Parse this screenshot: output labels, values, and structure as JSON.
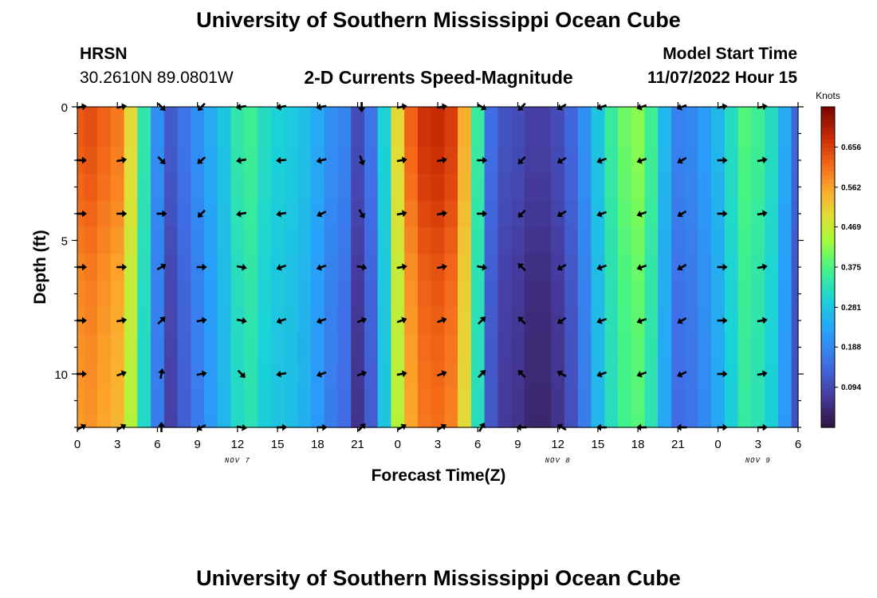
{
  "header": {
    "title": "University of Southern Mississippi Ocean Cube",
    "station": "HRSN",
    "coords": "30.2610N  89.0801W",
    "subtitle": "2-D Currents Speed-Magnitude",
    "model_label": "Model Start Time",
    "model_time": "11/07/2022 Hour 15"
  },
  "footer": {
    "title": "University of Southern Mississippi Ocean Cube"
  },
  "chart_data": {
    "type": "heatmap",
    "title": "2-D Currents Speed-Magnitude",
    "xlabel": "Forecast Time(Z)",
    "ylabel": "Depth (ft)",
    "x_hours": [
      0,
      1,
      2,
      3,
      4,
      5,
      6,
      7,
      8,
      9,
      10,
      11,
      12,
      13,
      14,
      15,
      16,
      17,
      18,
      19,
      20,
      21,
      22,
      23,
      24,
      25,
      26,
      27,
      28,
      29,
      30,
      31,
      32,
      33,
      34,
      35,
      36,
      37,
      38,
      39,
      40,
      41,
      42,
      43,
      44,
      45,
      46,
      47,
      48,
      49,
      50,
      51,
      52,
      53,
      54
    ],
    "x_ticks": [
      {
        "h": 0,
        "label": "0"
      },
      {
        "h": 3,
        "label": "3"
      },
      {
        "h": 6,
        "label": "6"
      },
      {
        "h": 9,
        "label": "9"
      },
      {
        "h": 12,
        "label": "12"
      },
      {
        "h": 15,
        "label": "15"
      },
      {
        "h": 18,
        "label": "18"
      },
      {
        "h": 21,
        "label": "21"
      },
      {
        "h": 24,
        "label": "0"
      },
      {
        "h": 27,
        "label": "3"
      },
      {
        "h": 30,
        "label": "6"
      },
      {
        "h": 33,
        "label": "9"
      },
      {
        "h": 36,
        "label": "12"
      },
      {
        "h": 39,
        "label": "15"
      },
      {
        "h": 42,
        "label": "18"
      },
      {
        "h": 45,
        "label": "21"
      },
      {
        "h": 48,
        "label": "0"
      },
      {
        "h": 51,
        "label": "3"
      },
      {
        "h": 54,
        "label": "6"
      }
    ],
    "date_labels": [
      {
        "h": 12,
        "label": "NOV 7"
      },
      {
        "h": 36,
        "label": "NOV 8"
      },
      {
        "h": 51,
        "label": "NOV 9"
      }
    ],
    "xlim": [
      0,
      54
    ],
    "depths_ft": [
      0,
      1,
      2,
      3,
      4,
      5,
      6,
      7,
      8,
      9,
      10,
      11,
      12
    ],
    "ylim": [
      0,
      12
    ],
    "y_ticks": [
      {
        "d": 0,
        "label": "0"
      },
      {
        "d": 5,
        "label": "5"
      },
      {
        "d": 10,
        "label": "10"
      }
    ],
    "speed_knots": [
      [
        0.63,
        0.64,
        0.62,
        0.6,
        0.5,
        0.34,
        0.2,
        0.12,
        0.16,
        0.2,
        0.24,
        0.28,
        0.34,
        0.36,
        0.32,
        0.3,
        0.29,
        0.27,
        0.24,
        0.2,
        0.18,
        0.1,
        0.16,
        0.3,
        0.5,
        0.62,
        0.67,
        0.68,
        0.66,
        0.55,
        0.35,
        0.15,
        0.11,
        0.1,
        0.08,
        0.08,
        0.1,
        0.14,
        0.2,
        0.28,
        0.35,
        0.4,
        0.42,
        0.36,
        0.26,
        0.18,
        0.19,
        0.22,
        0.26,
        0.32,
        0.38,
        0.36,
        0.32,
        0.24,
        0.14
      ],
      [
        0.63,
        0.64,
        0.62,
        0.6,
        0.5,
        0.34,
        0.2,
        0.12,
        0.16,
        0.2,
        0.24,
        0.28,
        0.34,
        0.36,
        0.32,
        0.3,
        0.29,
        0.27,
        0.24,
        0.2,
        0.18,
        0.1,
        0.16,
        0.3,
        0.5,
        0.62,
        0.67,
        0.68,
        0.66,
        0.55,
        0.35,
        0.15,
        0.11,
        0.1,
        0.08,
        0.08,
        0.1,
        0.14,
        0.2,
        0.28,
        0.35,
        0.4,
        0.42,
        0.36,
        0.26,
        0.18,
        0.19,
        0.22,
        0.26,
        0.32,
        0.38,
        0.36,
        0.32,
        0.24,
        0.14
      ],
      [
        0.63,
        0.64,
        0.62,
        0.6,
        0.5,
        0.34,
        0.2,
        0.12,
        0.16,
        0.2,
        0.24,
        0.28,
        0.34,
        0.36,
        0.32,
        0.3,
        0.29,
        0.27,
        0.24,
        0.2,
        0.18,
        0.1,
        0.16,
        0.3,
        0.5,
        0.62,
        0.67,
        0.68,
        0.66,
        0.55,
        0.35,
        0.15,
        0.11,
        0.1,
        0.08,
        0.08,
        0.1,
        0.14,
        0.2,
        0.28,
        0.35,
        0.4,
        0.42,
        0.36,
        0.26,
        0.18,
        0.19,
        0.22,
        0.26,
        0.32,
        0.38,
        0.36,
        0.32,
        0.24,
        0.14
      ],
      [
        0.63,
        0.64,
        0.62,
        0.6,
        0.5,
        0.34,
        0.2,
        0.12,
        0.16,
        0.2,
        0.24,
        0.28,
        0.34,
        0.36,
        0.32,
        0.3,
        0.29,
        0.27,
        0.24,
        0.2,
        0.18,
        0.1,
        0.16,
        0.3,
        0.5,
        0.62,
        0.67,
        0.68,
        0.66,
        0.55,
        0.35,
        0.15,
        0.11,
        0.1,
        0.08,
        0.08,
        0.1,
        0.14,
        0.2,
        0.28,
        0.35,
        0.4,
        0.42,
        0.36,
        0.26,
        0.18,
        0.19,
        0.22,
        0.26,
        0.32,
        0.38,
        0.36,
        0.32,
        0.24,
        0.14
      ],
      [
        0.63,
        0.64,
        0.62,
        0.6,
        0.5,
        0.34,
        0.2,
        0.12,
        0.16,
        0.2,
        0.24,
        0.28,
        0.34,
        0.36,
        0.32,
        0.3,
        0.29,
        0.27,
        0.24,
        0.2,
        0.18,
        0.1,
        0.16,
        0.3,
        0.5,
        0.62,
        0.67,
        0.68,
        0.66,
        0.55,
        0.35,
        0.15,
        0.11,
        0.1,
        0.08,
        0.08,
        0.1,
        0.14,
        0.2,
        0.28,
        0.35,
        0.4,
        0.42,
        0.36,
        0.26,
        0.18,
        0.19,
        0.22,
        0.26,
        0.32,
        0.38,
        0.36,
        0.32,
        0.24,
        0.14
      ],
      [
        0.63,
        0.64,
        0.62,
        0.6,
        0.5,
        0.34,
        0.2,
        0.12,
        0.16,
        0.2,
        0.24,
        0.28,
        0.34,
        0.36,
        0.32,
        0.3,
        0.29,
        0.27,
        0.24,
        0.2,
        0.18,
        0.1,
        0.16,
        0.3,
        0.5,
        0.62,
        0.67,
        0.68,
        0.66,
        0.55,
        0.35,
        0.15,
        0.11,
        0.1,
        0.08,
        0.08,
        0.1,
        0.14,
        0.2,
        0.28,
        0.35,
        0.4,
        0.42,
        0.36,
        0.26,
        0.18,
        0.19,
        0.22,
        0.26,
        0.32,
        0.38,
        0.36,
        0.32,
        0.24,
        0.14
      ],
      [
        0.63,
        0.64,
        0.62,
        0.6,
        0.5,
        0.34,
        0.2,
        0.12,
        0.16,
        0.2,
        0.24,
        0.28,
        0.34,
        0.36,
        0.32,
        0.3,
        0.29,
        0.27,
        0.24,
        0.2,
        0.18,
        0.1,
        0.16,
        0.3,
        0.5,
        0.62,
        0.67,
        0.68,
        0.66,
        0.55,
        0.35,
        0.15,
        0.11,
        0.1,
        0.08,
        0.08,
        0.1,
        0.14,
        0.2,
        0.28,
        0.35,
        0.4,
        0.42,
        0.36,
        0.26,
        0.18,
        0.19,
        0.22,
        0.26,
        0.32,
        0.38,
        0.36,
        0.32,
        0.24,
        0.14
      ],
      [
        0.63,
        0.64,
        0.62,
        0.6,
        0.5,
        0.34,
        0.2,
        0.12,
        0.16,
        0.2,
        0.24,
        0.28,
        0.34,
        0.36,
        0.32,
        0.3,
        0.29,
        0.27,
        0.24,
        0.2,
        0.18,
        0.1,
        0.16,
        0.3,
        0.5,
        0.62,
        0.67,
        0.68,
        0.66,
        0.55,
        0.35,
        0.15,
        0.11,
        0.1,
        0.08,
        0.08,
        0.1,
        0.14,
        0.2,
        0.28,
        0.35,
        0.4,
        0.42,
        0.36,
        0.26,
        0.18,
        0.19,
        0.22,
        0.26,
        0.32,
        0.38,
        0.36,
        0.32,
        0.24,
        0.14
      ],
      [
        0.63,
        0.64,
        0.62,
        0.6,
        0.5,
        0.34,
        0.2,
        0.12,
        0.16,
        0.2,
        0.24,
        0.28,
        0.34,
        0.36,
        0.32,
        0.3,
        0.29,
        0.27,
        0.24,
        0.2,
        0.18,
        0.1,
        0.16,
        0.3,
        0.5,
        0.62,
        0.67,
        0.68,
        0.66,
        0.55,
        0.35,
        0.15,
        0.11,
        0.1,
        0.08,
        0.08,
        0.1,
        0.14,
        0.2,
        0.28,
        0.35,
        0.4,
        0.42,
        0.36,
        0.26,
        0.18,
        0.19,
        0.22,
        0.26,
        0.32,
        0.38,
        0.36,
        0.32,
        0.24,
        0.14
      ],
      [
        0.63,
        0.64,
        0.62,
        0.6,
        0.5,
        0.34,
        0.2,
        0.12,
        0.16,
        0.2,
        0.24,
        0.28,
        0.34,
        0.36,
        0.32,
        0.3,
        0.29,
        0.27,
        0.24,
        0.2,
        0.18,
        0.1,
        0.16,
        0.3,
        0.5,
        0.62,
        0.67,
        0.68,
        0.66,
        0.55,
        0.35,
        0.15,
        0.11,
        0.1,
        0.08,
        0.08,
        0.1,
        0.14,
        0.2,
        0.28,
        0.35,
        0.4,
        0.42,
        0.36,
        0.26,
        0.18,
        0.19,
        0.22,
        0.26,
        0.32,
        0.38,
        0.36,
        0.32,
        0.24,
        0.14
      ],
      [
        0.63,
        0.64,
        0.62,
        0.6,
        0.5,
        0.34,
        0.2,
        0.12,
        0.16,
        0.2,
        0.24,
        0.28,
        0.34,
        0.36,
        0.32,
        0.3,
        0.29,
        0.27,
        0.24,
        0.2,
        0.18,
        0.1,
        0.16,
        0.3,
        0.5,
        0.62,
        0.67,
        0.68,
        0.66,
        0.55,
        0.35,
        0.15,
        0.11,
        0.1,
        0.08,
        0.08,
        0.1,
        0.14,
        0.2,
        0.28,
        0.35,
        0.4,
        0.42,
        0.36,
        0.26,
        0.18,
        0.19,
        0.22,
        0.26,
        0.32,
        0.38,
        0.36,
        0.32,
        0.24,
        0.14
      ],
      [
        0.63,
        0.64,
        0.62,
        0.6,
        0.5,
        0.34,
        0.2,
        0.12,
        0.16,
        0.2,
        0.24,
        0.28,
        0.34,
        0.36,
        0.32,
        0.3,
        0.29,
        0.27,
        0.24,
        0.2,
        0.18,
        0.1,
        0.16,
        0.3,
        0.5,
        0.62,
        0.67,
        0.68,
        0.66,
        0.55,
        0.35,
        0.15,
        0.11,
        0.1,
        0.08,
        0.08,
        0.1,
        0.14,
        0.2,
        0.28,
        0.35,
        0.4,
        0.42,
        0.36,
        0.26,
        0.18,
        0.19,
        0.22,
        0.26,
        0.32,
        0.38,
        0.36,
        0.32,
        0.24,
        0.14
      ],
      [
        0.63,
        0.64,
        0.62,
        0.6,
        0.5,
        0.34,
        0.2,
        0.12,
        0.16,
        0.2,
        0.24,
        0.28,
        0.34,
        0.36,
        0.32,
        0.3,
        0.29,
        0.27,
        0.24,
        0.2,
        0.18,
        0.1,
        0.16,
        0.3,
        0.5,
        0.62,
        0.67,
        0.68,
        0.66,
        0.55,
        0.35,
        0.15,
        0.11,
        0.1,
        0.08,
        0.08,
        0.1,
        0.14,
        0.2,
        0.28,
        0.35,
        0.4,
        0.42,
        0.36,
        0.26,
        0.18,
        0.19,
        0.22,
        0.26,
        0.32,
        0.38,
        0.36,
        0.32,
        0.24,
        0.14
      ]
    ],
    "depth_speed_factor": [
      1.0,
      1.0,
      0.96,
      0.92,
      0.86,
      0.8,
      0.74,
      0.7,
      0.67,
      0.64,
      0.62,
      0.6,
      0.58
    ],
    "arrows": {
      "hours": [
        0,
        3,
        6,
        9,
        12,
        15,
        18,
        21,
        24,
        27,
        30,
        33,
        36,
        39,
        42,
        45,
        48,
        51
      ],
      "depths_ft": [
        0,
        2,
        4,
        6,
        8,
        10,
        12
      ],
      "direction_deg": [
        [
          80,
          80,
          135,
          225,
          260,
          260,
          260,
          180,
          80,
          80,
          120,
          225,
          240,
          250,
          250,
          250,
          80,
          80
        ],
        [
          90,
          80,
          135,
          230,
          260,
          265,
          255,
          160,
          80,
          80,
          90,
          225,
          240,
          250,
          250,
          240,
          90,
          80
        ],
        [
          90,
          90,
          90,
          225,
          260,
          260,
          245,
          150,
          80,
          80,
          90,
          225,
          240,
          250,
          250,
          240,
          90,
          80
        ],
        [
          90,
          90,
          60,
          90,
          100,
          250,
          250,
          100,
          80,
          80,
          100,
          315,
          240,
          250,
          250,
          240,
          90,
          80
        ],
        [
          90,
          80,
          45,
          80,
          100,
          250,
          250,
          70,
          70,
          70,
          45,
          315,
          235,
          250,
          250,
          240,
          90,
          80
        ],
        [
          90,
          70,
          10,
          80,
          135,
          260,
          250,
          70,
          80,
          70,
          45,
          315,
          300,
          250,
          250,
          245,
          90,
          80
        ],
        [
          60,
          60,
          0,
          240,
          100,
          90,
          90,
          45,
          60,
          60,
          30,
          270,
          300,
          270,
          270,
          270,
          90,
          90
        ]
      ]
    },
    "colorbar": {
      "title": "Knots",
      "min": 0.0,
      "max": 0.75,
      "tick_labels": [
        "0.094",
        "0.188",
        "0.281",
        "0.375",
        "0.469",
        "0.562",
        "0.656"
      ],
      "tick_values": [
        0.094,
        0.188,
        0.281,
        0.375,
        0.469,
        0.562,
        0.656
      ]
    }
  }
}
